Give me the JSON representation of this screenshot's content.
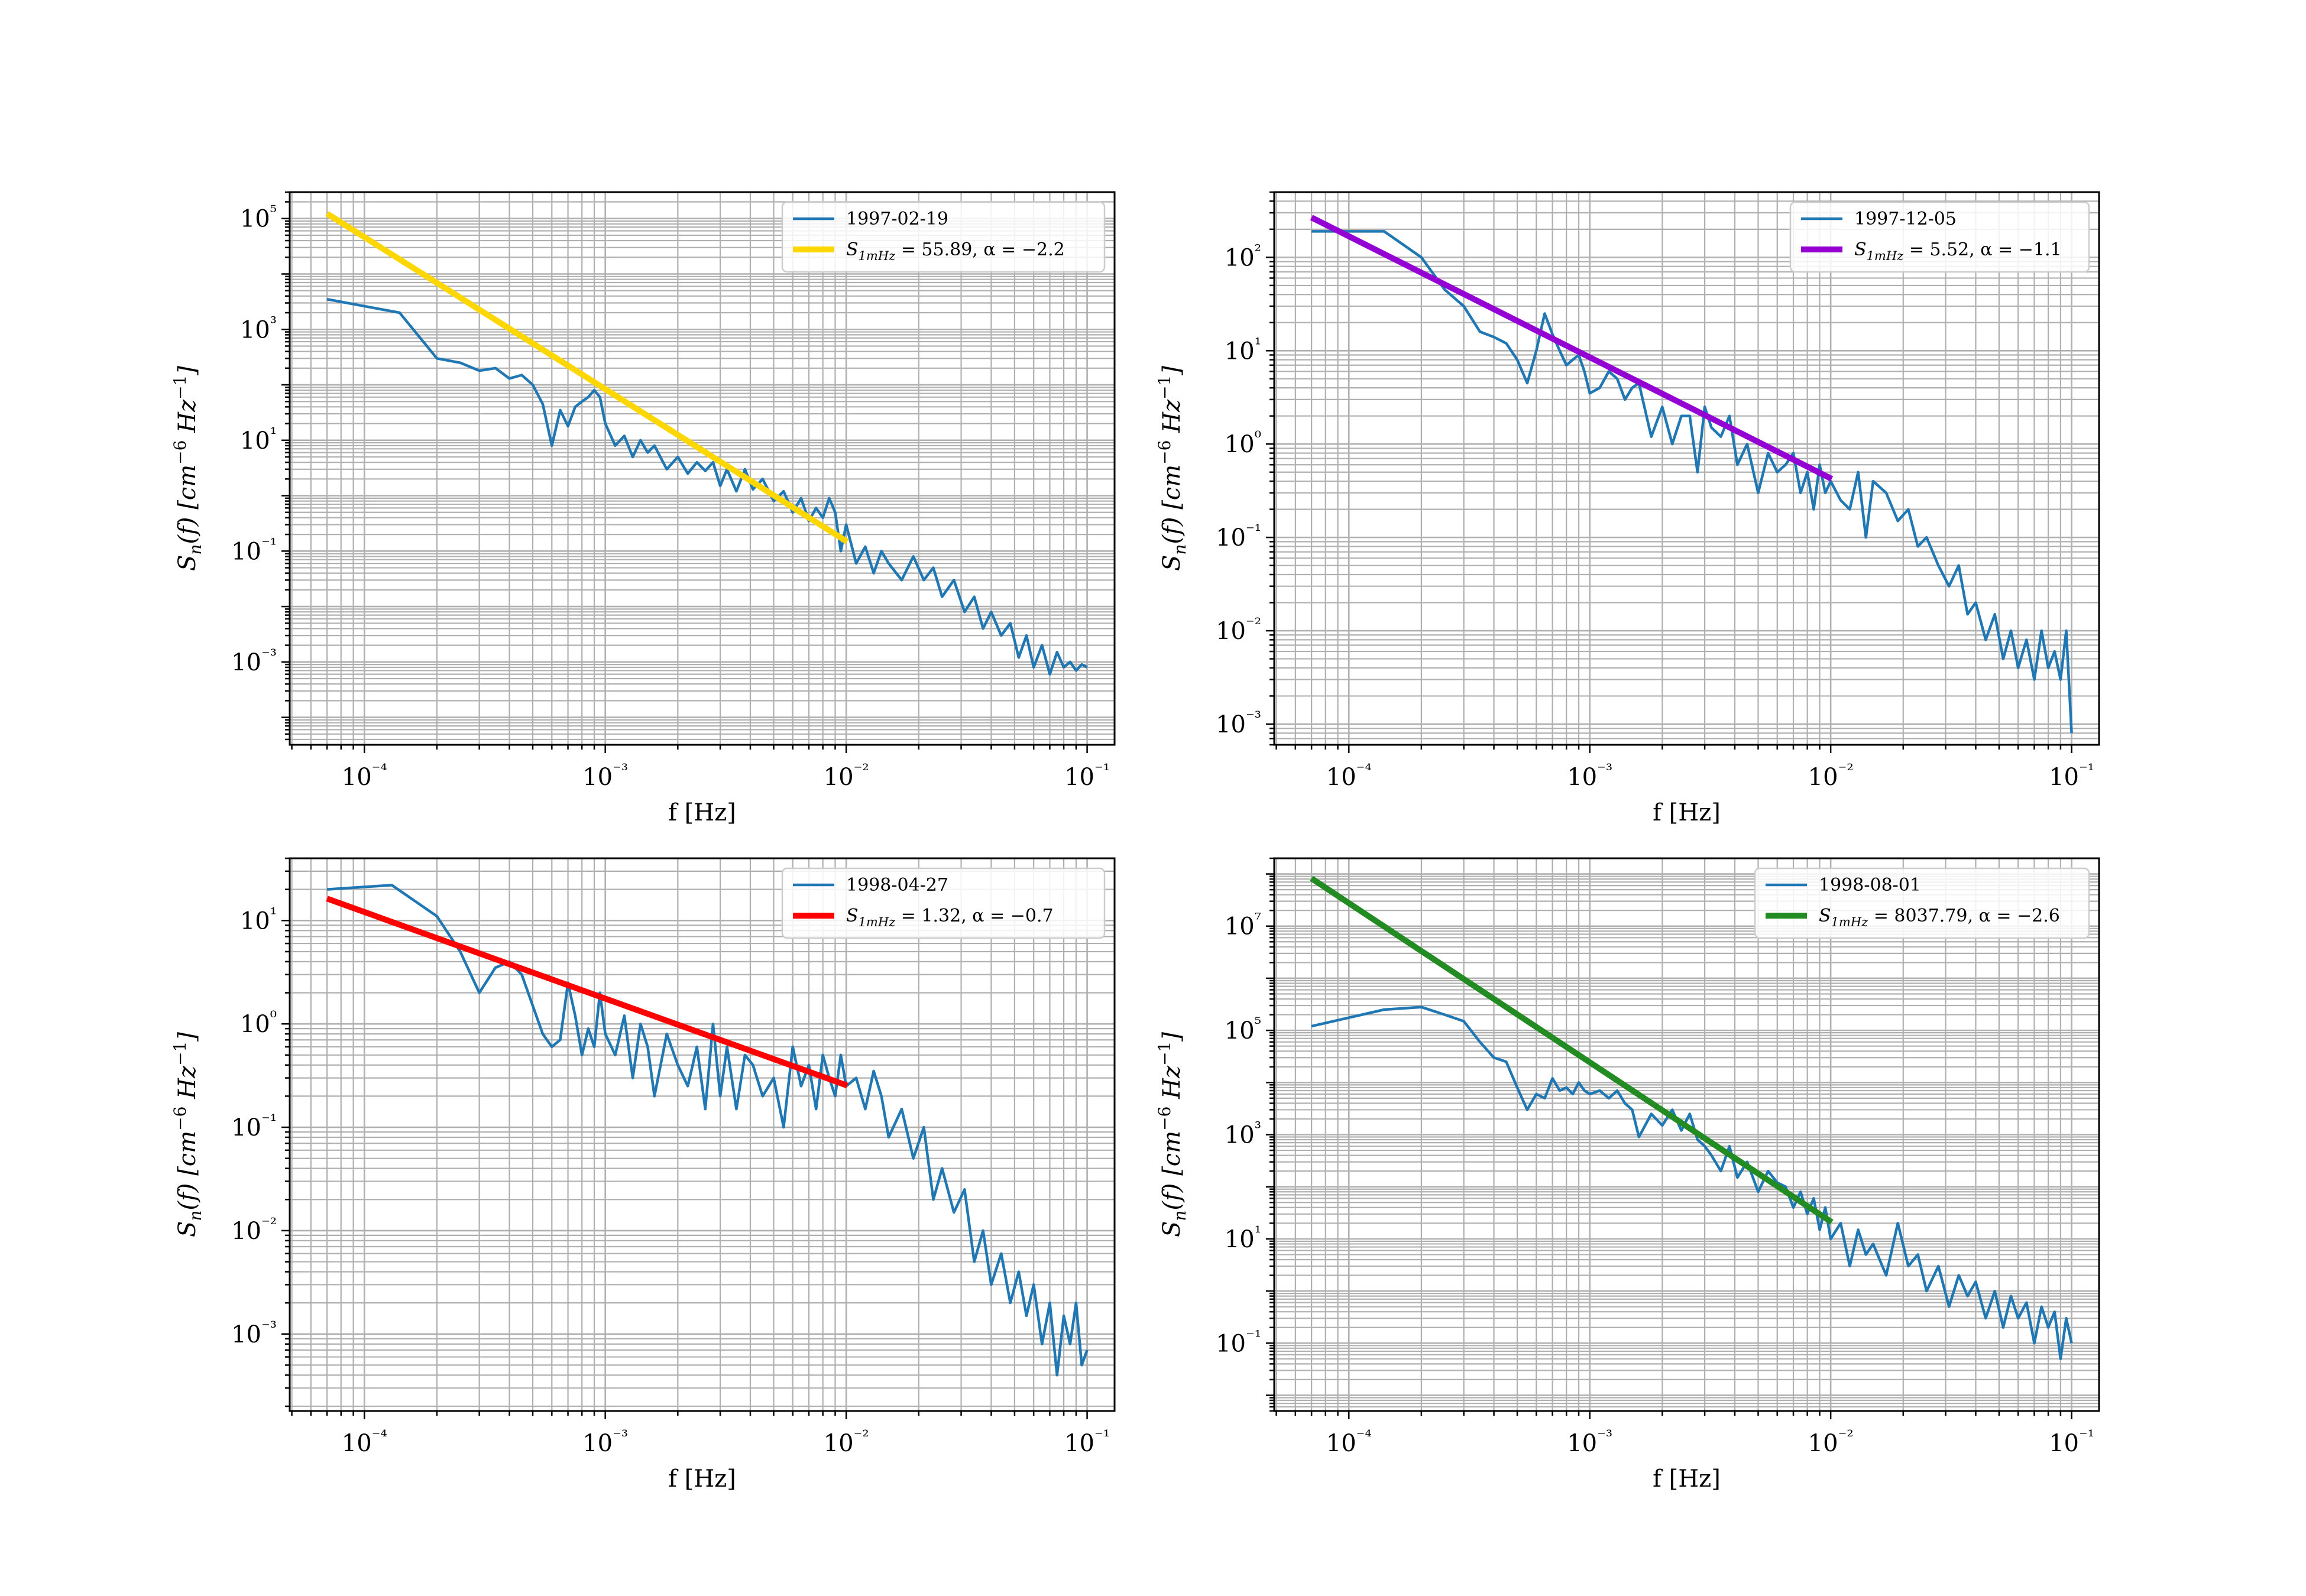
{
  "figure": {
    "background": "#ffffff",
    "text_color": "#000000",
    "grid_color": "#b0b0b0",
    "data_color": "#1f77b4"
  },
  "chart_data": [
    {
      "type": "line",
      "xlabel": "f [Hz]",
      "ylabel": "S_n(f) [cm^-6 Hz^-1]",
      "xscale": "log",
      "yscale": "log",
      "xlim": [
        4.9e-05,
        0.13
      ],
      "ylim": [
        3.2e-05,
        300000
      ],
      "xticks": [
        0.0001,
        0.001,
        0.01,
        0.1
      ],
      "xtick_labels": [
        "10⁻⁴",
        "10⁻³",
        "10⁻²",
        "10⁻¹"
      ],
      "yticks": [
        0.001,
        0.1,
        10,
        1000,
        100000
      ],
      "ytick_labels": [
        "10⁻³",
        "10⁻¹",
        "10¹",
        "10³",
        "10⁵"
      ],
      "grid": "major and minor",
      "legend_position": "upper right",
      "series": [
        {
          "name": "1997-02-19",
          "color": "#1f77b4",
          "x": [
            7e-05,
            0.00014,
            0.0002,
            0.00025,
            0.0003,
            0.00035,
            0.0004,
            0.00045,
            0.0005,
            0.00055,
            0.0006,
            0.00065,
            0.0007,
            0.00075,
            0.0008,
            0.00085,
            0.0009,
            0.00095,
            0.001,
            0.0011,
            0.0012,
            0.0013,
            0.0014,
            0.0015,
            0.0016,
            0.0018,
            0.002,
            0.0022,
            0.0024,
            0.0026,
            0.0028,
            0.003,
            0.0032,
            0.0035,
            0.0038,
            0.0041,
            0.0045,
            0.005,
            0.0055,
            0.006,
            0.0065,
            0.007,
            0.0075,
            0.008,
            0.0085,
            0.009,
            0.0095,
            0.01,
            0.011,
            0.012,
            0.013,
            0.014,
            0.015,
            0.017,
            0.019,
            0.021,
            0.023,
            0.025,
            0.028,
            0.031,
            0.034,
            0.037,
            0.04,
            0.044,
            0.048,
            0.052,
            0.056,
            0.06,
            0.065,
            0.07,
            0.075,
            0.08,
            0.085,
            0.09,
            0.095,
            0.1
          ],
          "y": [
            3500,
            2000,
            300,
            250,
            180,
            200,
            130,
            150,
            100,
            45,
            8,
            35,
            18,
            40,
            50,
            60,
            80,
            60,
            20,
            8,
            12,
            5,
            10,
            6,
            8,
            3,
            5,
            2.5,
            4,
            2.8,
            4,
            1.5,
            3,
            1.2,
            3,
            1.3,
            2,
            0.8,
            1.2,
            0.5,
            0.9,
            0.35,
            0.6,
            0.4,
            0.9,
            0.5,
            0.1,
            0.3,
            0.06,
            0.12,
            0.04,
            0.1,
            0.06,
            0.03,
            0.08,
            0.03,
            0.05,
            0.015,
            0.03,
            0.008,
            0.015,
            0.004,
            0.008,
            0.003,
            0.005,
            0.0012,
            0.003,
            0.0008,
            0.002,
            0.0006,
            0.0015,
            0.0008,
            0.001,
            0.0007,
            0.0009,
            0.0008
          ]
        },
        {
          "name": "S_1mHz = 55.89, α = −2.2",
          "color": "#ffd700",
          "x": [
            7e-05,
            0.0101
          ],
          "y": [
            123000,
            0.1473
          ]
        }
      ]
    },
    {
      "type": "line",
      "xlabel": "f [Hz]",
      "ylabel": "S_n(f) [cm^-6 Hz^-1]",
      "xscale": "log",
      "yscale": "log",
      "xlim": [
        4.9e-05,
        0.13
      ],
      "ylim": [
        0.0006,
        500
      ],
      "xticks": [
        0.0001,
        0.001,
        0.01,
        0.1
      ],
      "xtick_labels": [
        "10⁻⁴",
        "10⁻³",
        "10⁻²",
        "10⁻¹"
      ],
      "yticks": [
        0.001,
        0.01,
        0.1,
        1,
        10,
        100
      ],
      "ytick_labels": [
        "10⁻³",
        "10⁻²",
        "10⁻¹",
        "10⁰",
        "10¹",
        "10²"
      ],
      "grid": "major and minor",
      "legend_position": "upper right",
      "series": [
        {
          "name": "1997-12-05",
          "color": "#1f77b4",
          "x": [
            7e-05,
            0.00014,
            0.0002,
            0.00025,
            0.0003,
            0.00035,
            0.0004,
            0.00045,
            0.0005,
            0.00055,
            0.0006,
            0.00065,
            0.0007,
            0.00075,
            0.0008,
            0.00085,
            0.0009,
            0.00095,
            0.001,
            0.0011,
            0.0012,
            0.0013,
            0.0014,
            0.0015,
            0.0016,
            0.0018,
            0.002,
            0.0022,
            0.0024,
            0.0026,
            0.0028,
            0.003,
            0.0032,
            0.0035,
            0.0038,
            0.0041,
            0.0045,
            0.005,
            0.0055,
            0.006,
            0.0065,
            0.007,
            0.0075,
            0.008,
            0.0085,
            0.009,
            0.0095,
            0.01,
            0.011,
            0.012,
            0.013,
            0.014,
            0.015,
            0.017,
            0.019,
            0.021,
            0.023,
            0.025,
            0.028,
            0.031,
            0.034,
            0.037,
            0.04,
            0.044,
            0.048,
            0.052,
            0.056,
            0.06,
            0.065,
            0.07,
            0.075,
            0.08,
            0.085,
            0.09,
            0.095,
            0.1
          ],
          "y": [
            190,
            190,
            100,
            45,
            30,
            16,
            14,
            12,
            8,
            4.5,
            10,
            25,
            15,
            10,
            7,
            8,
            9,
            6,
            3.5,
            4,
            6,
            5,
            3,
            4,
            4.5,
            1.2,
            2.5,
            1,
            2,
            2,
            0.5,
            2.5,
            1.5,
            1.2,
            2,
            0.6,
            1,
            0.3,
            0.8,
            0.5,
            0.6,
            0.8,
            0.3,
            0.5,
            0.2,
            0.6,
            0.3,
            0.4,
            0.25,
            0.2,
            0.5,
            0.1,
            0.4,
            0.3,
            0.15,
            0.2,
            0.08,
            0.1,
            0.05,
            0.03,
            0.05,
            0.015,
            0.02,
            0.008,
            0.015,
            0.005,
            0.01,
            0.004,
            0.008,
            0.003,
            0.01,
            0.004,
            0.006,
            0.003,
            0.01,
            0.0008
          ]
        },
        {
          "name": "S_1mHz = 5.52, α = −1.1",
          "color": "#9400d3",
          "x": [
            7e-05,
            0.0101
          ],
          "y": [
            267,
            0.4235
          ]
        }
      ]
    },
    {
      "type": "line",
      "xlabel": "f [Hz]",
      "ylabel": "S_n(f) [cm^-6 Hz^-1]",
      "xscale": "log",
      "yscale": "log",
      "xlim": [
        4.9e-05,
        0.13
      ],
      "ylim": [
        0.00018,
        40
      ],
      "xticks": [
        0.0001,
        0.001,
        0.01,
        0.1
      ],
      "xtick_labels": [
        "10⁻⁴",
        "10⁻³",
        "10⁻²",
        "10⁻¹"
      ],
      "yticks": [
        0.001,
        0.01,
        0.1,
        1,
        10
      ],
      "ytick_labels": [
        "10⁻³",
        "10⁻²",
        "10⁻¹",
        "10⁰",
        "10¹"
      ],
      "grid": "major and minor",
      "legend_position": "upper right",
      "series": [
        {
          "name": "1998-04-27",
          "color": "#1f77b4",
          "x": [
            7e-05,
            0.00013,
            0.0002,
            0.00025,
            0.0003,
            0.00035,
            0.0004,
            0.00045,
            0.0005,
            0.00055,
            0.0006,
            0.00065,
            0.0007,
            0.00075,
            0.0008,
            0.00085,
            0.0009,
            0.00095,
            0.001,
            0.0011,
            0.0012,
            0.0013,
            0.0014,
            0.0015,
            0.0016,
            0.0018,
            0.002,
            0.0022,
            0.0024,
            0.0026,
            0.0028,
            0.003,
            0.0032,
            0.0035,
            0.0038,
            0.0041,
            0.0045,
            0.005,
            0.0055,
            0.006,
            0.0065,
            0.007,
            0.0075,
            0.008,
            0.0085,
            0.009,
            0.0095,
            0.01,
            0.011,
            0.012,
            0.013,
            0.014,
            0.015,
            0.017,
            0.019,
            0.021,
            0.023,
            0.025,
            0.028,
            0.031,
            0.034,
            0.037,
            0.04,
            0.044,
            0.048,
            0.052,
            0.056,
            0.06,
            0.065,
            0.07,
            0.075,
            0.08,
            0.085,
            0.09,
            0.095,
            0.1
          ],
          "y": [
            20,
            22,
            11,
            5,
            2,
            3.5,
            4,
            3,
            1.5,
            0.8,
            0.6,
            0.7,
            2.5,
            1.2,
            0.5,
            0.9,
            0.6,
            2,
            0.8,
            0.5,
            1.2,
            0.3,
            1,
            0.6,
            0.2,
            0.8,
            0.4,
            0.25,
            0.6,
            0.15,
            1,
            0.2,
            0.6,
            0.15,
            0.5,
            0.4,
            0.2,
            0.3,
            0.1,
            0.6,
            0.25,
            0.4,
            0.15,
            0.5,
            0.3,
            0.2,
            0.5,
            0.25,
            0.3,
            0.15,
            0.35,
            0.2,
            0.08,
            0.15,
            0.05,
            0.1,
            0.02,
            0.04,
            0.015,
            0.025,
            0.005,
            0.01,
            0.003,
            0.006,
            0.002,
            0.004,
            0.0015,
            0.003,
            0.0008,
            0.002,
            0.0004,
            0.0015,
            0.0008,
            0.002,
            0.0005,
            0.0007
          ]
        },
        {
          "name": "S_1mHz = 1.32, α = −0.7",
          "color": "#ff0000",
          "x": [
            7e-05,
            0.0101
          ],
          "y": [
            16.3,
            0.2535
          ]
        }
      ]
    },
    {
      "type": "line",
      "xlabel": "f [Hz]",
      "ylabel": "S_n(f) [cm^-6 Hz^-1]",
      "xscale": "log",
      "yscale": "log",
      "xlim": [
        4.9e-05,
        0.13
      ],
      "ylim": [
        0.005,
        200000000
      ],
      "xticks": [
        0.0001,
        0.001,
        0.01,
        0.1
      ],
      "xtick_labels": [
        "10⁻⁴",
        "10⁻³",
        "10⁻²",
        "10⁻¹"
      ],
      "yticks": [
        0.1,
        10,
        1000,
        100000,
        10000000
      ],
      "ytick_labels": [
        "10⁻¹",
        "10¹",
        "10³",
        "10⁵",
        "10⁷"
      ],
      "grid": "major and minor",
      "legend_position": "upper right",
      "series": [
        {
          "name": "1998-08-01",
          "color": "#1f77b4",
          "x": [
            7e-05,
            0.00014,
            0.0002,
            0.00025,
            0.0003,
            0.00035,
            0.0004,
            0.00045,
            0.0005,
            0.00055,
            0.0006,
            0.00065,
            0.0007,
            0.00075,
            0.0008,
            0.00085,
            0.0009,
            0.00095,
            0.001,
            0.0011,
            0.0012,
            0.0013,
            0.0014,
            0.0015,
            0.0016,
            0.0018,
            0.002,
            0.0022,
            0.0024,
            0.0026,
            0.0028,
            0.003,
            0.0032,
            0.0035,
            0.0038,
            0.0041,
            0.0045,
            0.005,
            0.0055,
            0.006,
            0.0065,
            0.007,
            0.0075,
            0.008,
            0.0085,
            0.009,
            0.0095,
            0.01,
            0.011,
            0.012,
            0.013,
            0.014,
            0.015,
            0.017,
            0.019,
            0.021,
            0.023,
            0.025,
            0.028,
            0.031,
            0.034,
            0.037,
            0.04,
            0.044,
            0.048,
            0.052,
            0.056,
            0.06,
            0.065,
            0.07,
            0.075,
            0.08,
            0.085,
            0.09,
            0.095,
            0.1
          ],
          "y": [
            120000,
            250000,
            280000,
            200000,
            150000,
            60000,
            30000,
            25000,
            8000,
            3000,
            6000,
            5000,
            12000,
            7000,
            8000,
            6000,
            10000,
            7000,
            6000,
            7000,
            5000,
            7000,
            4000,
            3000,
            900,
            2500,
            1500,
            3000,
            1200,
            2500,
            800,
            600,
            400,
            200,
            600,
            150,
            300,
            80,
            200,
            120,
            100,
            40,
            80,
            30,
            60,
            15,
            40,
            10,
            20,
            3,
            15,
            5,
            8,
            2,
            20,
            3,
            5,
            1,
            3,
            0.5,
            2,
            0.8,
            1.5,
            0.3,
            1,
            0.2,
            0.8,
            0.3,
            0.6,
            0.1,
            0.5,
            0.2,
            0.4,
            0.05,
            0.3,
            0.1
          ]
        },
        {
          "name": "S_1mHz = 8037.79, α = −2.6",
          "color": "#228b22",
          "x": [
            7e-05,
            0.0101
          ],
          "y": [
            82000000,
            20.9
          ]
        }
      ]
    }
  ]
}
